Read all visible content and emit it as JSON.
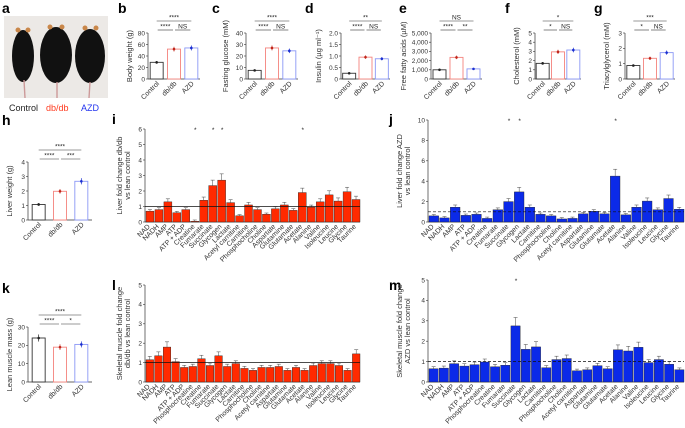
{
  "photo_panel": {
    "panel": "a",
    "legend": [
      {
        "label": "Control",
        "color": "#222222"
      },
      {
        "label": "db/db",
        "color": "#ff3b1f"
      },
      {
        "label": "AZD",
        "color": "#2233ee"
      }
    ]
  },
  "group_colors": {
    "Control": "#333333",
    "db/db": "#f4837d",
    "AZD": "#8a97f5"
  },
  "bar_colors": {
    "db/db": "#ff2a00",
    "AZD": "#0b2ae8"
  },
  "chart_data": [
    {
      "panel": "b",
      "type": "bar",
      "categories": [
        "Control",
        "db/db",
        "AZD"
      ],
      "values": [
        29,
        52,
        54
      ],
      "ylabel": "Body weight (g)",
      "ylim": [
        0,
        80
      ],
      "yticks": [
        "0",
        "20",
        "40",
        "60",
        "80"
      ],
      "significance": [
        {
          "pair": [
            0,
            1
          ],
          "label": "****"
        },
        {
          "pair": [
            1,
            2
          ],
          "label": "NS"
        },
        {
          "pair": [
            0,
            2
          ],
          "label": "****"
        }
      ]
    },
    {
      "panel": "c",
      "type": "bar",
      "categories": [
        "Control",
        "db/db",
        "AZD"
      ],
      "values": [
        7.5,
        27,
        24.5
      ],
      "ylabel": "Fasting glucose (mM)",
      "ylim": [
        0,
        40
      ],
      "yticks": [
        "0",
        "10",
        "20",
        "30",
        "40"
      ],
      "significance": [
        {
          "pair": [
            0,
            1
          ],
          "label": "****"
        },
        {
          "pair": [
            1,
            2
          ],
          "label": "NS"
        },
        {
          "pair": [
            0,
            2
          ],
          "label": "****"
        }
      ]
    },
    {
      "panel": "d",
      "type": "bar",
      "categories": [
        "Control",
        "db/db",
        "AZD"
      ],
      "values": [
        0.25,
        0.95,
        0.88
      ],
      "ylabel": "Insulin (µg ml⁻¹)",
      "ylim": [
        0,
        2
      ],
      "yticks": [
        "0",
        "0.5",
        "1.0",
        "1.5",
        "2.0"
      ],
      "significance": [
        {
          "pair": [
            0,
            1
          ],
          "label": "****"
        },
        {
          "pair": [
            1,
            2
          ],
          "label": "NS"
        },
        {
          "pair": [
            0,
            2
          ],
          "label": "**"
        }
      ]
    },
    {
      "panel": "e",
      "type": "bar",
      "categories": [
        "Control",
        "db/db",
        "AZD"
      ],
      "values": [
        1000,
        2350,
        1100
      ],
      "ylabel": "Free fatty acids (µM)",
      "ylim": [
        0,
        5000
      ],
      "yticks": [
        "0",
        "1,000",
        "2,000",
        "3,000",
        "4,000",
        "5,000"
      ],
      "significance": [
        {
          "pair": [
            0,
            1
          ],
          "label": "****"
        },
        {
          "pair": [
            1,
            2
          ],
          "label": "**"
        },
        {
          "pair": [
            0,
            2
          ],
          "label": "NS"
        }
      ]
    },
    {
      "panel": "f",
      "type": "bar",
      "categories": [
        "Control",
        "db/db",
        "AZD"
      ],
      "values": [
        1.7,
        2.95,
        3.15
      ],
      "ylabel": "Cholesterol (mM)",
      "ylim": [
        0,
        5
      ],
      "yticks": [
        "0",
        "1",
        "2",
        "3",
        "4",
        "5"
      ],
      "significance": [
        {
          "pair": [
            0,
            1
          ],
          "label": "*"
        },
        {
          "pair": [
            1,
            2
          ],
          "label": "NS"
        },
        {
          "pair": [
            0,
            2
          ],
          "label": "*"
        }
      ]
    },
    {
      "panel": "g",
      "type": "bar",
      "categories": [
        "Control",
        "db/db",
        "AZD"
      ],
      "values": [
        0.88,
        1.35,
        1.72
      ],
      "ylabel": "Triacylglycerol (mM)",
      "ylim": [
        0,
        3
      ],
      "yticks": [
        "0",
        "1",
        "2",
        "3"
      ],
      "significance": [
        {
          "pair": [
            0,
            1
          ],
          "label": "*"
        },
        {
          "pair": [
            1,
            2
          ],
          "label": "NS"
        },
        {
          "pair": [
            0,
            2
          ],
          "label": "***"
        }
      ]
    },
    {
      "panel": "h",
      "type": "bar",
      "categories": [
        "Control",
        "db/db",
        "AZD"
      ],
      "values": [
        1.07,
        1.98,
        2.67
      ],
      "ylabel": "Liver weight (g)",
      "ylim": [
        0,
        4
      ],
      "yticks": [
        "0",
        "1",
        "2",
        "3",
        "4"
      ],
      "significance": [
        {
          "pair": [
            0,
            1
          ],
          "label": "****"
        },
        {
          "pair": [
            1,
            2
          ],
          "label": "***"
        },
        {
          "pair": [
            0,
            2
          ],
          "label": "****"
        }
      ]
    },
    {
      "panel": "k",
      "type": "bar",
      "categories": [
        "Control",
        "db/db",
        "AZD"
      ],
      "values": [
        24,
        19,
        20.5
      ],
      "ylabel": "Lean muscle mass (g)",
      "ylim": [
        0,
        30
      ],
      "yticks": [
        "0",
        "10",
        "20",
        "30"
      ],
      "significance": [
        {
          "pair": [
            0,
            1
          ],
          "label": "****"
        },
        {
          "pair": [
            1,
            2
          ],
          "label": "*"
        },
        {
          "pair": [
            0,
            2
          ],
          "label": "****"
        }
      ]
    },
    {
      "panel": "i",
      "type": "bar",
      "group": "db/db",
      "categories": [
        "NAD",
        "NADH",
        "AMP",
        "ATP",
        "ATP + ADP",
        "Creatine",
        "Fumarate",
        "Succinate",
        "Glycogen",
        "Lactate",
        "Acetyl carnitine",
        "Carnitine",
        "Phosphocholine",
        "Choline",
        "Aspartate",
        "Glutamine",
        "Glutamate",
        "Acetate",
        "Alanine",
        "Valine",
        "Isoleucine",
        "Leucine",
        "Glycine",
        "Taurine"
      ],
      "values": [
        0.7,
        0.8,
        1.3,
        0.6,
        0.8,
        0.05,
        1.4,
        2.35,
        2.7,
        1.25,
        0.4,
        1.1,
        0.8,
        0.5,
        0.85,
        1.1,
        0.75,
        1.9,
        0.95,
        1.3,
        1.75,
        1.35,
        1.95,
        1.45
      ],
      "starred": [
        "Creatine",
        "Succinate",
        "Glycogen",
        "Acetate"
      ],
      "ylabel": [
        "Liver fold change db/db",
        "vs lean control"
      ],
      "ylim": [
        0,
        6
      ],
      "yticks": [
        "0",
        "1",
        "2",
        "3",
        "4",
        "5",
        "6"
      ],
      "reference_line": 1
    },
    {
      "panel": "j",
      "type": "bar",
      "group": "AZD",
      "categories": [
        "NAD",
        "NADH",
        "AMP",
        "ATP",
        "ATP + ADP",
        "Creatine",
        "Fumarate",
        "Succinate",
        "Glycogen",
        "Lactate",
        "Carnitine",
        "Phosphocholine",
        "Choline",
        "Acetyl carnitine",
        "Aspartate",
        "Glutamine",
        "Glutamate",
        "Acetate",
        "Alanine",
        "Valine",
        "Isoleucine",
        "Leucine",
        "Glycine",
        "Taurine"
      ],
      "values": [
        0.6,
        0.4,
        1.45,
        0.65,
        0.75,
        0.35,
        1.2,
        2.0,
        2.95,
        1.45,
        0.75,
        0.6,
        0.3,
        0.35,
        0.8,
        1.05,
        0.8,
        4.5,
        0.7,
        1.45,
        2.05,
        1.2,
        2.3,
        1.25
      ],
      "starred": [
        "Succinate",
        "Glycogen",
        "Acetate"
      ],
      "ylabel": [
        "Liver fold change AZD",
        "vs lean control"
      ],
      "ylim": [
        0,
        10
      ],
      "yticks": [
        "0",
        "2",
        "4",
        "6",
        "8",
        "10"
      ],
      "reference_line": 1
    },
    {
      "panel": "l",
      "type": "bar",
      "group": "db/db",
      "categories": [
        "NAD",
        "NADH",
        "AMP",
        "ATP",
        "ATP + ADP",
        "Phosphocreatine",
        "Creatine",
        "Fumarate",
        "Succinate",
        "Glycogen",
        "Lactate",
        "Carnitine",
        "Phosphocholine",
        "Choline",
        "Acetyl carnitine",
        "Aspartate",
        "Glutamine",
        "Glutamate",
        "Acetate",
        "Alanine",
        "Valine",
        "Isoleucine",
        "Leucine",
        "Glycine",
        "Taurine"
      ],
      "values": [
        1.15,
        1.35,
        1.8,
        1.05,
        0.75,
        0.8,
        1.2,
        0.85,
        1.35,
        0.8,
        0.95,
        0.7,
        0.6,
        0.75,
        0.75,
        0.8,
        0.6,
        0.75,
        0.6,
        0.85,
        0.95,
        0.95,
        0.85,
        0.6,
        1.45
      ],
      "starred": [],
      "ylabel": [
        "Skeletal muscle fold change",
        "db/db vs lean control"
      ],
      "ylim": [
        0,
        5
      ],
      "yticks": [
        "0",
        "1",
        "2",
        "3",
        "4",
        "5"
      ],
      "reference_line": 1
    },
    {
      "panel": "m",
      "type": "bar",
      "group": "AZD",
      "categories": [
        "NAD",
        "NADH",
        "AMP",
        "ATP",
        "ATP + ADP",
        "Phosphocreatine",
        "Creatine",
        "Fumarate",
        "Succinate",
        "Glycogen",
        "Lactate",
        "Carnitine",
        "Phosphocholine",
        "Choline",
        "Acetyl carnitine",
        "Aspartate",
        "Glutamine",
        "Glutamate",
        "Acetate",
        "Alanine",
        "Valine",
        "Isoleucine",
        "Leucine",
        "Glycine",
        "Taurine"
      ],
      "values": [
        0.65,
        0.68,
        0.9,
        0.78,
        0.85,
        0.98,
        0.75,
        0.82,
        2.75,
        1.6,
        1.72,
        0.7,
        1.1,
        1.15,
        0.55,
        0.6,
        0.8,
        0.65,
        1.58,
        1.52,
        1.7,
        0.95,
        1.1,
        0.87,
        0.6
      ],
      "starred": [
        "Succinate"
      ],
      "ylabel": [
        "Skeletal muscle fold change",
        "AZD vs lean control"
      ],
      "ylim": [
        0,
        5
      ],
      "yticks": [
        "0",
        "1",
        "2",
        "3",
        "4",
        "5"
      ],
      "reference_line": 1
    }
  ]
}
